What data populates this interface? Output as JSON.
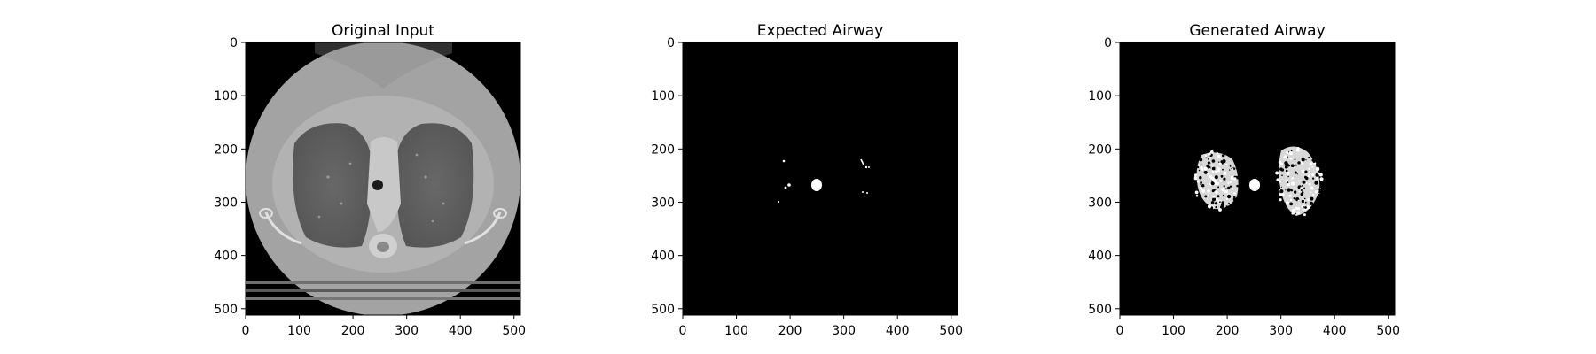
{
  "figure": {
    "panels": [
      {
        "id": "original",
        "title": "Original Input",
        "x_ticks": [
          "0",
          "100",
          "200",
          "300",
          "400",
          "500"
        ],
        "y_ticks": [
          "0",
          "100",
          "200",
          "300",
          "400",
          "500"
        ],
        "image_description_name": "ct-scan-image"
      },
      {
        "id": "expected",
        "title": "Expected Airway",
        "x_ticks": [
          "0",
          "100",
          "200",
          "300",
          "400",
          "500"
        ],
        "y_ticks": [
          "0",
          "100",
          "200",
          "300",
          "400",
          "500"
        ],
        "image_description_name": "expected-airway-mask"
      },
      {
        "id": "generated",
        "title": "Generated Airway",
        "x_ticks": [
          "0",
          "100",
          "200",
          "300",
          "400",
          "500"
        ],
        "y_ticks": [
          "0",
          "100",
          "200",
          "300",
          "400",
          "500"
        ],
        "image_description_name": "generated-airway-mask"
      }
    ]
  },
  "colors": {
    "background": "#000000",
    "mask": "#ffffff",
    "ct_body": "#a6a6a6",
    "ct_lung": "#5f5f5f"
  }
}
